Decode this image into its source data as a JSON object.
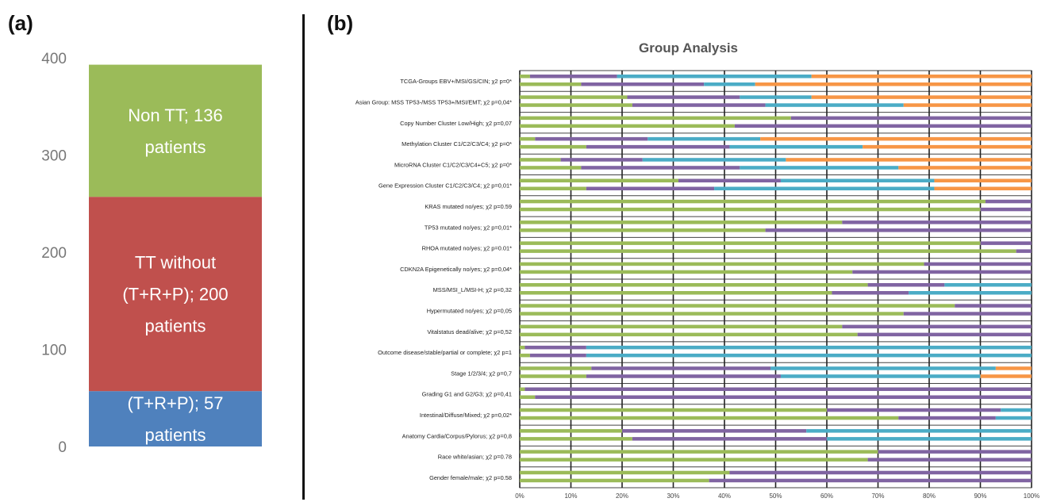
{
  "panels": {
    "a_label": "(a)",
    "b_label": "(b)"
  },
  "chart_data": [
    {
      "type": "bar",
      "stacked": true,
      "yticks": [
        0,
        100,
        200,
        300,
        400
      ],
      "ylim": [
        0,
        400
      ],
      "segments": [
        {
          "value": 57,
          "color": "#4f81bd",
          "lines": [
            "(T+R+P); 57",
            "patients"
          ]
        },
        {
          "value": 200,
          "color": "#c0504d",
          "lines": [
            "TT without",
            "(T+R+P); 200",
            "patients"
          ]
        },
        {
          "value": 136,
          "color": "#9bbb59",
          "lines": [
            "Non TT; 136",
            "patients"
          ]
        }
      ]
    },
    {
      "type": "bar",
      "orientation": "horizontal",
      "stacked": true,
      "percent": true,
      "title": "Group Analysis",
      "xticks": [
        "0%",
        "10%",
        "20%",
        "30%",
        "40%",
        "50%",
        "60%",
        "70%",
        "80%",
        "90%",
        "100%"
      ],
      "colors": {
        "green": "#9bbb59",
        "purple": "#8064a2",
        "blue": "#4bacc6",
        "orange": "#f79646"
      },
      "categories": [
        {
          "label": "TCGA-Groups  EBV+/MSI/GS/CIN; χ2 p=0*",
          "bars": [
            [
              2,
              17,
              38,
              43
            ],
            [
              12,
              24,
              10,
              54
            ]
          ]
        },
        {
          "label": "Asian Group: MSS TP53-/MSS TP53+/MSI/EMT; χ2 p=0,04*",
          "bars": [
            [
              21,
              22,
              14,
              43
            ],
            [
              22,
              26,
              27,
              25
            ]
          ]
        },
        {
          "label": "Copy Number Cluster Low/High; χ2 p=0,07",
          "bars": [
            [
              53,
              47
            ],
            [
              42,
              58
            ]
          ]
        },
        {
          "label": "Methylation Cluster C1/C2/C3/C4; χ2 p=0*",
          "bars": [
            [
              3,
              22,
              22,
              53
            ],
            [
              13,
              28,
              26,
              33
            ]
          ]
        },
        {
          "label": "MicroRNA Cluster C1/C2/C3/C4+C5; χ2 p=0*",
          "bars": [
            [
              8,
              16,
              28,
              48
            ],
            [
              12,
              31,
              31,
              26
            ]
          ]
        },
        {
          "label": "Gene Expression Cluster C1/C2/C3/C4; χ2 p=0,01*",
          "bars": [
            [
              31,
              20,
              30,
              19
            ],
            [
              13,
              25,
              43,
              19
            ]
          ]
        },
        {
          "label": "KRAS mutated no/yes; χ2 p=0.59",
          "bars": [
            [
              91,
              9
            ],
            [
              90,
              10
            ]
          ]
        },
        {
          "label": "TP53 mutated no/yes; χ2 p=0,01*",
          "bars": [
            [
              63,
              37
            ],
            [
              48,
              52
            ]
          ]
        },
        {
          "label": "RHOA mutated no/yes; χ2 p=0.01*",
          "bars": [
            [
              90,
              10
            ],
            [
              97,
              3
            ]
          ]
        },
        {
          "label": "CDKN2A Epigenetically no/yes; χ2 p=0,04*",
          "bars": [
            [
              79,
              21
            ],
            [
              65,
              35
            ]
          ]
        },
        {
          "label": "MSS/MSI_L/MSI-H; χ2 p=0,32",
          "bars": [
            [
              68,
              15,
              17
            ],
            [
              61,
              15,
              24
            ]
          ]
        },
        {
          "label": "Hypermutated no/yes; χ2 p=0,05",
          "bars": [
            [
              85,
              15
            ],
            [
              75,
              25
            ]
          ]
        },
        {
          "label": "Vitalstatus dead/alive; χ2 p=0,52",
          "bars": [
            [
              63,
              37
            ],
            [
              66,
              34
            ]
          ]
        },
        {
          "label": "Outcome disease/stable/partial or complete; χ2 p=1",
          "bars": [
            [
              1,
              12,
              87
            ],
            [
              2,
              11,
              87
            ]
          ]
        },
        {
          "label": "Stage 1/2/3/4; χ2 p=0,7",
          "bars": [
            [
              14,
              35,
              44,
              7
            ],
            [
              13,
              38,
              39,
              10
            ]
          ]
        },
        {
          "label": "Grading G1 and G2/G3; χ2 p=0,41",
          "bars": [
            [
              1,
              99
            ],
            [
              3,
              97
            ]
          ]
        },
        {
          "label": "Intestinal/Diffuse/Mixed; χ2 p=0,02*",
          "bars": [
            [
              60,
              34,
              6
            ],
            [
              74,
              19,
              7
            ]
          ]
        },
        {
          "label": "Anatomy Cardia/Corpus/Pylorus; χ2 p=0,8",
          "bars": [
            [
              20,
              36,
              44
            ],
            [
              22,
              38,
              40
            ]
          ]
        },
        {
          "label": "Race white/asian; χ2 p=0.78",
          "bars": [
            [
              70,
              30
            ],
            [
              68,
              32
            ]
          ]
        },
        {
          "label": "Gender female/male; χ2 p=0.58",
          "bars": [
            [
              41,
              59
            ],
            [
              37,
              63
            ]
          ]
        }
      ]
    }
  ]
}
